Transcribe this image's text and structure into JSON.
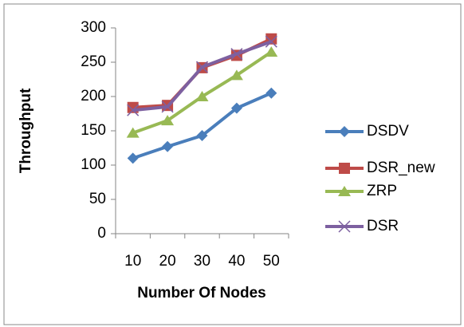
{
  "chart_data": {
    "type": "line",
    "x_label": "Number Of Nodes",
    "y_label": "Throughput",
    "categories": [
      10,
      20,
      30,
      40,
      50
    ],
    "series": [
      {
        "name": "DSDV",
        "color": "#4a7ebb",
        "marker": "diamond",
        "values": [
          110,
          127,
          143,
          183,
          205
        ]
      },
      {
        "name": "DSR_new",
        "color": "#be4b48",
        "marker": "square",
        "values": [
          184,
          187,
          242,
          260,
          284
        ]
      },
      {
        "name": "ZRP",
        "color": "#98b954",
        "marker": "triangle",
        "values": [
          147,
          165,
          200,
          231,
          265
        ]
      },
      {
        "name": "DSR",
        "color": "#7d60a0",
        "marker": "x",
        "values": [
          180,
          185,
          243,
          262,
          280
        ]
      }
    ],
    "ylim": [
      0,
      300
    ],
    "yticks": [
      0,
      50,
      100,
      150,
      200,
      250,
      300
    ],
    "grid": false,
    "legend": "right"
  }
}
